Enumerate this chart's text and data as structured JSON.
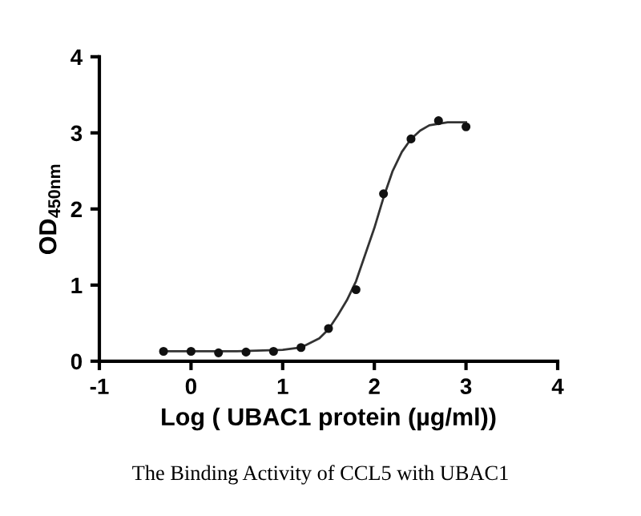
{
  "chart_data": {
    "type": "scatter",
    "xlabel": "Log ( UBAC1 protein (µg/ml))",
    "ylabel": "OD$_{450nm}$",
    "annotations": [
      "The Binding Activity of CCL5 with UBAC1"
    ],
    "xlim": [
      -1,
      4
    ],
    "xticks": [
      -1,
      0,
      1,
      2,
      3,
      4
    ],
    "ylim": [
      0,
      4
    ],
    "yticks": [
      0,
      1,
      2,
      3,
      4
    ],
    "grid": false,
    "legend": false,
    "series": [
      {
        "color": "#111111",
        "marker": "circle",
        "x": [
          -0.3,
          0,
          0.3,
          0.6,
          0.9,
          1.2,
          1.5,
          1.8,
          2.1,
          2.4,
          2.7,
          3.0
        ],
        "values": [
          0.13,
          0.13,
          0.11,
          0.12,
          0.13,
          0.18,
          0.43,
          0.94,
          2.2,
          2.92,
          3.16,
          3.08
        ]
      },
      {
        "type": "line",
        "color": "#333333",
        "marker": "none",
        "line_style": "solid",
        "x": [
          -0.3,
          0.5,
          1.0,
          1.2,
          1.4,
          1.5,
          1.6,
          1.7,
          1.8,
          1.9,
          2.0,
          2.1,
          2.2,
          2.3,
          2.4,
          2.5,
          2.6,
          2.8,
          3.0
        ],
        "values": [
          0.13,
          0.13,
          0.15,
          0.18,
          0.3,
          0.42,
          0.6,
          0.8,
          1.05,
          1.4,
          1.75,
          2.15,
          2.5,
          2.75,
          2.92,
          3.03,
          3.1,
          3.14,
          3.14
        ]
      }
    ]
  }
}
